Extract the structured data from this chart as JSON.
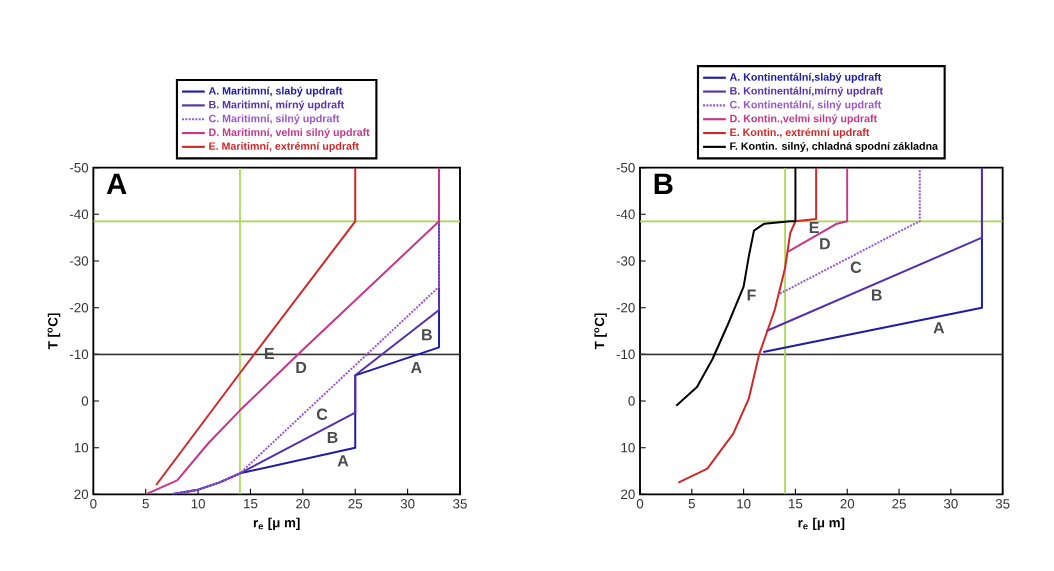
{
  "chart_data": [
    {
      "type": "line",
      "title": "A",
      "xlabel": "r$_{e}$ [μ m]",
      "ylabel": "T [$^{o}$C]",
      "xlim": [
        0,
        35
      ],
      "ylim": [
        20,
        -50
      ],
      "xticks": [
        0,
        5,
        10,
        15,
        20,
        25,
        30,
        35
      ],
      "yticks": [
        20,
        10,
        0,
        -10,
        -20,
        -30,
        -40,
        -50
      ],
      "legend": "top",
      "series": [
        {
          "name": "A.   Maritimní, slabý updraft",
          "color": "#1c1ca8",
          "x": [
            7.5,
            10,
            12,
            14,
            25,
            25,
            33,
            33
          ],
          "values": [
            20,
            19,
            17.5,
            15.5,
            10,
            -5.5,
            -11.5,
            -50
          ]
        },
        {
          "name": "B.   Maritimní, mírný updraft",
          "color": "#5530b0",
          "x": [
            7.5,
            10,
            12,
            14,
            25,
            25,
            33,
            33
          ],
          "values": [
            20,
            19,
            17.5,
            15.5,
            2.5,
            -5.5,
            -19.5,
            -50
          ]
        },
        {
          "name": "C.   Maritimní, silný updraft",
          "color": "#9a55d0",
          "line_style": "dotted",
          "x": [
            7.5,
            10,
            12,
            14,
            33,
            33
          ],
          "values": [
            20,
            19,
            17.5,
            15.5,
            -24.5,
            -50
          ]
        },
        {
          "name": "D.   Maritimní, velmi silný updraft",
          "color": "#c8358a",
          "x": [
            5,
            8,
            11,
            14,
            20,
            33,
            33
          ],
          "values": [
            20,
            17,
            9,
            2,
            -11,
            -38.5,
            -50
          ]
        },
        {
          "name": "E.   Maritimní, extrémní updraft",
          "color": "#d02828",
          "x": [
            6,
            14,
            25,
            25
          ],
          "values": [
            18,
            -6,
            -38.5,
            -50
          ]
        }
      ],
      "ref_lines": [
        {
          "axis": "y",
          "value": -10,
          "color": "#333333"
        },
        {
          "axis": "y",
          "value": -38.5,
          "color": "#a8d84a"
        },
        {
          "axis": "x",
          "value": 14,
          "color": "#a8d84a"
        }
      ],
      "annotations": [
        {
          "text": "E",
          "x": 16,
          "y": -12
        },
        {
          "text": "D",
          "x": 19,
          "y": -9
        },
        {
          "text": "C",
          "x": 21,
          "y": 1
        },
        {
          "text": "B",
          "x": 22,
          "y": 6
        },
        {
          "text": "A",
          "x": 23,
          "y": 11
        },
        {
          "text": "B",
          "x": 31,
          "y": -16
        },
        {
          "text": "A",
          "x": 30,
          "y": -9
        }
      ]
    },
    {
      "type": "line",
      "title": "B",
      "xlabel": "r$_{e}$ [μ m]",
      "ylabel": "T [$^{o}$C]",
      "xlim": [
        0,
        35
      ],
      "ylim": [
        20,
        -50
      ],
      "xticks": [
        0,
        5,
        10,
        15,
        20,
        25,
        30,
        35
      ],
      "yticks": [
        20,
        10,
        0,
        -10,
        -20,
        -30,
        -40,
        -50
      ],
      "legend": "top",
      "series": [
        {
          "name": "A. Kontinentální,slabý updraft",
          "color": "#1c1ca8",
          "x": [
            11.9,
            33,
            33
          ],
          "values": [
            -10.5,
            -20,
            -50
          ]
        },
        {
          "name": "B. Kontinentální,mírný updraft",
          "color": "#5530b0",
          "x": [
            12.2,
            33,
            33
          ],
          "values": [
            -15,
            -35,
            -50
          ]
        },
        {
          "name": "C. Kontinentální, silný updraft",
          "color": "#9a55d0",
          "line_style": "dotted",
          "x": [
            13.5,
            26.5,
            27,
            27
          ],
          "values": [
            -23,
            -38,
            -38.5,
            -50
          ]
        },
        {
          "name": "D. Kontin.,velmi silný updraft",
          "color": "#c8358a",
          "x": [
            14.3,
            19,
            20,
            20
          ],
          "values": [
            -32,
            -38,
            -38.5,
            -50
          ]
        },
        {
          "name": "E. Kontin.,   extrémní updraft",
          "color": "#d02828",
          "x": [
            3.7,
            6.5,
            9,
            10.5,
            11.5,
            13,
            14,
            14.5,
            15,
            17,
            17
          ],
          "values": [
            17.5,
            14.5,
            7,
            -0.5,
            -10,
            -19.5,
            -28.5,
            -36,
            -38.5,
            -39,
            -50
          ]
        },
        {
          "name": "F. Kontin. silný, chladná spodní základna",
          "color": "#000000",
          "x": [
            3.5,
            5.5,
            7,
            8.5,
            10,
            10.5,
            11,
            12,
            14.5,
            15,
            15
          ],
          "values": [
            1,
            -3,
            -9,
            -16.5,
            -24.5,
            -31,
            -36.5,
            -38,
            -38.5,
            -38.5,
            -50
          ]
        }
      ],
      "ref_lines": [
        {
          "axis": "y",
          "value": -10,
          "color": "#333333"
        },
        {
          "axis": "y",
          "value": -38.5,
          "color": "#a8d84a"
        },
        {
          "axis": "x",
          "value": 14,
          "color": "#a8d84a"
        }
      ],
      "annotations": [
        {
          "text": "F",
          "x": 10,
          "y": -24.5
        },
        {
          "text": "E",
          "x": 16,
          "y": -39
        },
        {
          "text": "D",
          "x": 17,
          "y": -35.5
        },
        {
          "text": "C",
          "x": 20,
          "y": -30.5
        },
        {
          "text": "B",
          "x": 22,
          "y": -24.5
        },
        {
          "text": "A",
          "x": 28,
          "y": -17.5
        }
      ]
    }
  ]
}
